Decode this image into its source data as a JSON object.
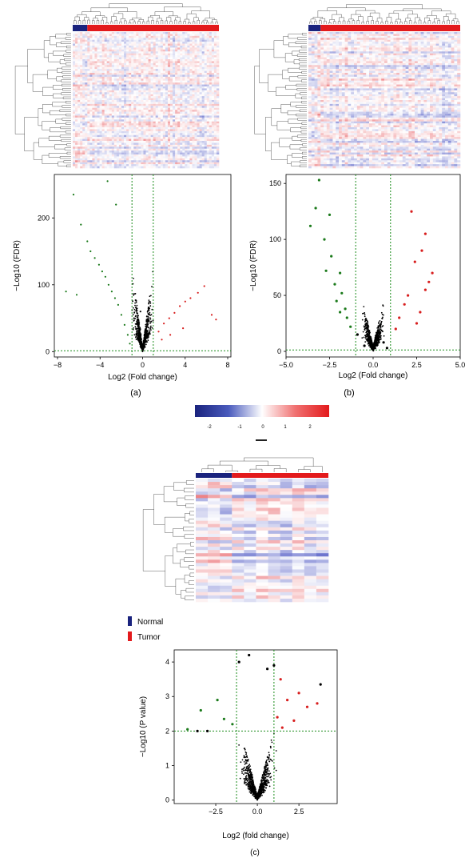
{
  "panel_labels": {
    "a": "(a)",
    "b": "(b)",
    "c": "(c)"
  },
  "colorbar": {
    "ticks": [
      "-2",
      "-1",
      "0",
      "1",
      "2"
    ],
    "low_color": "#1a237e",
    "mid_color": "#ffffff",
    "high_color": "#e31a1c"
  },
  "legend": {
    "normal": "Normal",
    "tumor": "Tumor",
    "normal_color": "#1a237e",
    "tumor_color": "#e31a1c"
  },
  "colors": {
    "down": "#1b7a1b",
    "up": "#d81e1e",
    "ns": "#000000",
    "threshold": "#1b8c1b"
  },
  "chart_data": [
    {
      "id": "volcano-a",
      "type": "scatter",
      "xlabel": "Log2 (Fold change)",
      "ylabel": "−Log10 (FDR)",
      "xlim": [
        -8.3,
        8.3
      ],
      "ylim": [
        -8,
        265
      ],
      "xticks": [
        -8,
        -4,
        0,
        4,
        8
      ],
      "xtick_labels": [
        "−8",
        "−4",
        "0",
        "4",
        "8"
      ],
      "yticks": [
        0,
        100,
        200
      ],
      "ytick_labels": [
        "0",
        "100",
        "200"
      ],
      "thresholds": {
        "x": [
          -1,
          1
        ],
        "y": 1.3
      },
      "series": [
        {
          "label": "down",
          "points": [
            [
              -6.5,
              235
            ],
            [
              -5.8,
              190
            ],
            [
              -5.2,
              165
            ],
            [
              -4.9,
              150
            ],
            [
              -4.5,
              140
            ],
            [
              -4.1,
              130
            ],
            [
              -3.8,
              120
            ],
            [
              -3.5,
              112
            ],
            [
              -3.2,
              100
            ],
            [
              -2.9,
              90
            ],
            [
              -2.6,
              80
            ],
            [
              -2.3,
              70
            ],
            [
              -2.0,
              55
            ],
            [
              -1.7,
              40
            ],
            [
              -1.4,
              25
            ],
            [
              -1.2,
              12
            ],
            [
              -3.3,
              255
            ],
            [
              -2.5,
              220
            ],
            [
              -6.2,
              85
            ],
            [
              -7.2,
              90
            ]
          ]
        },
        {
          "label": "up",
          "points": [
            [
              1.5,
              30
            ],
            [
              2.0,
              42
            ],
            [
              2.5,
              50
            ],
            [
              3.0,
              58
            ],
            [
              3.5,
              68
            ],
            [
              4.0,
              75
            ],
            [
              4.5,
              80
            ],
            [
              5.2,
              88
            ],
            [
              5.8,
              98
            ],
            [
              6.5,
              55
            ],
            [
              6.9,
              48
            ],
            [
              1.8,
              18
            ],
            [
              2.6,
              25
            ],
            [
              3.8,
              35
            ]
          ]
        },
        {
          "label": "ns",
          "points": [
            [
              -0.8,
              50
            ],
            [
              -0.5,
              30
            ],
            [
              0.0,
              5
            ],
            [
              0.5,
              25
            ],
            [
              0.8,
              45
            ],
            [
              -0.2,
              60
            ],
            [
              0.3,
              15
            ]
          ]
        }
      ]
    },
    {
      "id": "volcano-b",
      "type": "scatter",
      "xlabel": "Log2 (Fold change)",
      "ylabel": "−Log10 (FDR)",
      "xlim": [
        -5.0,
        5.0
      ],
      "ylim": [
        -5,
        158
      ],
      "xticks": [
        -5,
        -2.5,
        0,
        2.5,
        5
      ],
      "xtick_labels": [
        "−5.0",
        "−2.5",
        "0.0",
        "2.5",
        "5.0"
      ],
      "yticks": [
        0,
        50,
        100,
        150
      ],
      "ytick_labels": [
        "0",
        "50",
        "100",
        "150"
      ],
      "thresholds": {
        "x": [
          -1,
          1
        ],
        "y": 1.3
      },
      "series": [
        {
          "label": "down",
          "points": [
            [
              -3.1,
              153
            ],
            [
              -3.3,
              128
            ],
            [
              -2.5,
              122
            ],
            [
              -3.6,
              112
            ],
            [
              -2.8,
              100
            ],
            [
              -2.4,
              85
            ],
            [
              -1.9,
              70
            ],
            [
              -2.2,
              60
            ],
            [
              -1.8,
              52
            ],
            [
              -2.1,
              45
            ],
            [
              -1.6,
              38
            ],
            [
              -1.5,
              30
            ],
            [
              -1.3,
              22
            ],
            [
              -2.7,
              72
            ],
            [
              -1.9,
              35
            ]
          ]
        },
        {
          "label": "up",
          "points": [
            [
              2.2,
              125
            ],
            [
              3.0,
              105
            ],
            [
              2.8,
              90
            ],
            [
              2.4,
              80
            ],
            [
              3.4,
              70
            ],
            [
              3.2,
              62
            ],
            [
              2.0,
              50
            ],
            [
              1.8,
              42
            ],
            [
              2.7,
              35
            ],
            [
              1.5,
              30
            ],
            [
              2.5,
              25
            ],
            [
              1.3,
              20
            ],
            [
              3.0,
              55
            ]
          ]
        },
        {
          "label": "ns",
          "points": [
            [
              -0.5,
              5
            ],
            [
              0.3,
              10
            ],
            [
              0.8,
              3
            ],
            [
              -0.9,
              15
            ],
            [
              0.0,
              2
            ],
            [
              0.6,
              8
            ]
          ]
        }
      ]
    },
    {
      "id": "volcano-c",
      "type": "scatter",
      "xlabel": "Log2 (fold change)",
      "ylabel": "−Log10 (P value)",
      "xlim": [
        -5.0,
        4.8
      ],
      "ylim": [
        -0.1,
        4.35
      ],
      "xticks": [
        -2.5,
        0,
        2.5
      ],
      "xtick_labels": [
        "−2.5",
        "0.0",
        "2.5"
      ],
      "yticks": [
        0,
        1,
        2,
        3,
        4
      ],
      "ytick_labels": [
        "0",
        "1",
        "2",
        "3",
        "4"
      ],
      "thresholds": {
        "x": [
          -1.25,
          1.0
        ],
        "y": 2.0
      },
      "series": [
        {
          "label": "down",
          "points": [
            [
              -3.4,
              2.6
            ],
            [
              -2.4,
              2.9
            ],
            [
              -2.0,
              2.35
            ],
            [
              -1.5,
              2.2
            ],
            [
              -4.2,
              2.05
            ]
          ]
        },
        {
          "label": "up",
          "points": [
            [
              1.4,
              3.5
            ],
            [
              2.5,
              3.1
            ],
            [
              1.8,
              2.9
            ],
            [
              3.0,
              2.7
            ],
            [
              1.2,
              2.4
            ],
            [
              2.2,
              2.3
            ],
            [
              3.6,
              2.8
            ],
            [
              1.5,
              2.1
            ]
          ]
        },
        {
          "label": "ns",
          "points": [
            [
              -0.5,
              4.2
            ],
            [
              0.6,
              3.8
            ],
            [
              3.8,
              3.35
            ],
            [
              1.0,
              3.9
            ],
            [
              -1.1,
              4.0
            ],
            [
              -3.6,
              2.0
            ],
            [
              -3.0,
              2.0
            ]
          ]
        }
      ]
    }
  ]
}
